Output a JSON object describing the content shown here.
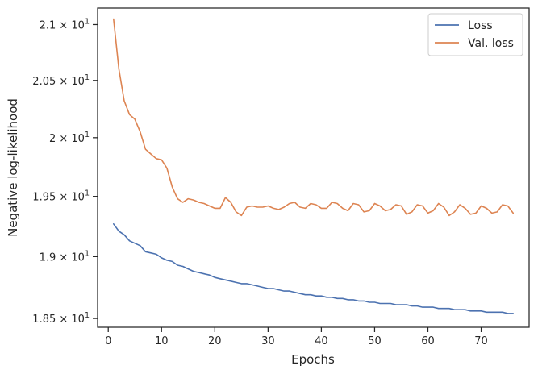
{
  "chart_data": {
    "type": "line",
    "xlabel": "Epochs",
    "ylabel": "Negative log-likelihood",
    "xlim": [
      -2,
      79
    ],
    "ylim": [
      18.43,
      21.15
    ],
    "yscale": "log",
    "grid": false,
    "legend_position": "top-right",
    "x_ticks": [
      0,
      10,
      20,
      30,
      40,
      50,
      60,
      70
    ],
    "x_tick_labels": [
      "0",
      "10",
      "20",
      "30",
      "40",
      "50",
      "60",
      "70"
    ],
    "y_ticks": [
      18.5,
      19.0,
      19.5,
      20.0,
      20.5,
      21.0
    ],
    "y_tick_mantissas": [
      "1.85",
      "1.9",
      "1.95",
      "2",
      "2.05",
      "2.1"
    ],
    "y_tick_times": "×",
    "y_tick_base": "10",
    "y_tick_exponent": "1",
    "series": [
      {
        "name": "Loss",
        "color": "#4c72b0",
        "x": [
          1,
          2,
          3,
          4,
          5,
          6,
          7,
          8,
          9,
          10,
          11,
          12,
          13,
          14,
          15,
          16,
          17,
          18,
          19,
          20,
          21,
          22,
          23,
          24,
          25,
          26,
          27,
          28,
          29,
          30,
          31,
          32,
          33,
          34,
          35,
          36,
          37,
          38,
          39,
          40,
          41,
          42,
          43,
          44,
          45,
          46,
          47,
          48,
          49,
          50,
          51,
          52,
          53,
          54,
          55,
          56,
          57,
          58,
          59,
          60,
          61,
          62,
          63,
          64,
          65,
          66,
          67,
          68,
          69,
          70,
          71,
          72,
          73,
          74,
          75,
          76
        ],
        "values": [
          19.27,
          19.21,
          19.18,
          19.13,
          19.11,
          19.09,
          19.04,
          19.03,
          19.02,
          18.99,
          18.97,
          18.96,
          18.93,
          18.92,
          18.9,
          18.88,
          18.87,
          18.86,
          18.85,
          18.83,
          18.82,
          18.81,
          18.8,
          18.79,
          18.78,
          18.78,
          18.77,
          18.76,
          18.75,
          18.74,
          18.74,
          18.73,
          18.72,
          18.72,
          18.71,
          18.7,
          18.69,
          18.69,
          18.68,
          18.68,
          18.67,
          18.67,
          18.66,
          18.66,
          18.65,
          18.65,
          18.64,
          18.64,
          18.63,
          18.63,
          18.62,
          18.62,
          18.62,
          18.61,
          18.61,
          18.61,
          18.6,
          18.6,
          18.59,
          18.59,
          18.59,
          18.58,
          18.58,
          18.58,
          18.57,
          18.57,
          18.57,
          18.56,
          18.56,
          18.56,
          18.55,
          18.55,
          18.55,
          18.55,
          18.54,
          18.54
        ]
      },
      {
        "name": "Val. loss",
        "color": "#dd8452",
        "x": [
          1,
          2,
          3,
          4,
          5,
          6,
          7,
          8,
          9,
          10,
          11,
          12,
          13,
          14,
          15,
          16,
          17,
          18,
          19,
          20,
          21,
          22,
          23,
          24,
          25,
          26,
          27,
          28,
          29,
          30,
          31,
          32,
          33,
          34,
          35,
          36,
          37,
          38,
          39,
          40,
          41,
          42,
          43,
          44,
          45,
          46,
          47,
          48,
          49,
          50,
          51,
          52,
          53,
          54,
          55,
          56,
          57,
          58,
          59,
          60,
          61,
          62,
          63,
          64,
          65,
          66,
          67,
          68,
          69,
          70,
          71,
          72,
          73,
          74,
          75,
          76
        ],
        "values": [
          21.05,
          20.6,
          20.32,
          20.2,
          20.16,
          20.05,
          19.9,
          19.86,
          19.82,
          19.81,
          19.74,
          19.58,
          19.48,
          19.45,
          19.48,
          19.47,
          19.45,
          19.44,
          19.42,
          19.4,
          19.4,
          19.49,
          19.45,
          19.37,
          19.34,
          19.41,
          19.42,
          19.41,
          19.41,
          19.42,
          19.4,
          19.39,
          19.41,
          19.44,
          19.45,
          19.41,
          19.4,
          19.44,
          19.43,
          19.4,
          19.4,
          19.45,
          19.44,
          19.4,
          19.38,
          19.44,
          19.43,
          19.37,
          19.38,
          19.44,
          19.42,
          19.38,
          19.39,
          19.43,
          19.42,
          19.35,
          19.37,
          19.43,
          19.42,
          19.36,
          19.38,
          19.44,
          19.41,
          19.34,
          19.37,
          19.43,
          19.4,
          19.35,
          19.36,
          19.42,
          19.4,
          19.36,
          19.37,
          19.43,
          19.42,
          19.36
        ]
      }
    ]
  }
}
